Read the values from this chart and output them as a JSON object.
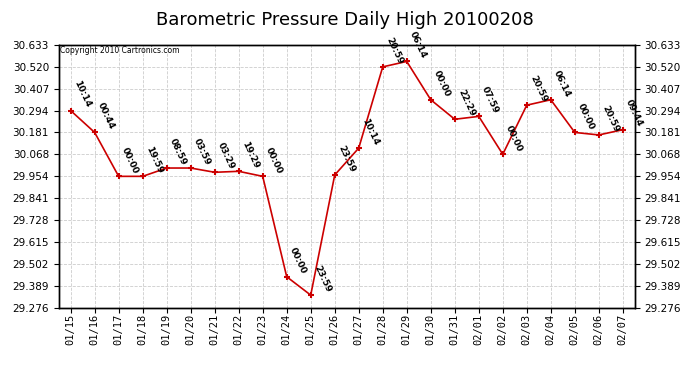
{
  "title": "Barometric Pressure Daily High 20100208",
  "copyright": "Copyright 2010 Cartronics.com",
  "background_color": "#ffffff",
  "plot_bg_color": "#ffffff",
  "line_color": "#cc0000",
  "marker_color": "#cc0000",
  "grid_color": "#cccccc",
  "border_color": "#000000",
  "data_points": [
    {
      "date": "01/15",
      "x": 0,
      "value": 30.294,
      "label": "10:14"
    },
    {
      "date": "01/16",
      "x": 1,
      "value": 30.181,
      "label": "00:44"
    },
    {
      "date": "01/17",
      "x": 2,
      "value": 29.954,
      "label": "00:00"
    },
    {
      "date": "01/18",
      "x": 3,
      "value": 29.954,
      "label": "19:59"
    },
    {
      "date": "01/19",
      "x": 4,
      "value": 29.997,
      "label": "08:59"
    },
    {
      "date": "01/20",
      "x": 5,
      "value": 29.997,
      "label": "03:59"
    },
    {
      "date": "01/21",
      "x": 6,
      "value": 29.975,
      "label": "03:29"
    },
    {
      "date": "01/22",
      "x": 7,
      "value": 29.98,
      "label": "19:29"
    },
    {
      "date": "01/23",
      "x": 8,
      "value": 29.954,
      "label": "00:00"
    },
    {
      "date": "01/24",
      "x": 9,
      "value": 29.435,
      "label": "00:00"
    },
    {
      "date": "01/25",
      "x": 10,
      "value": 29.34,
      "label": "23:59"
    },
    {
      "date": "01/26",
      "x": 11,
      "value": 29.961,
      "label": "23:59"
    },
    {
      "date": "01/27",
      "x": 12,
      "value": 30.1,
      "label": "10:14"
    },
    {
      "date": "01/28",
      "x": 13,
      "value": 30.52,
      "label": "20:59"
    },
    {
      "date": "01/29",
      "x": 14,
      "value": 30.548,
      "label": "06:14"
    },
    {
      "date": "01/30",
      "x": 15,
      "value": 30.35,
      "label": "00:00"
    },
    {
      "date": "01/31",
      "x": 16,
      "value": 30.249,
      "label": "22:29"
    },
    {
      "date": "02/01",
      "x": 17,
      "value": 30.264,
      "label": "07:59"
    },
    {
      "date": "02/02",
      "x": 18,
      "value": 30.068,
      "label": "00:00"
    },
    {
      "date": "02/03",
      "x": 19,
      "value": 30.322,
      "label": "20:59"
    },
    {
      "date": "02/04",
      "x": 20,
      "value": 30.35,
      "label": "06:14"
    },
    {
      "date": "02/05",
      "x": 21,
      "value": 30.181,
      "label": "00:00"
    },
    {
      "date": "02/06",
      "x": 22,
      "value": 30.168,
      "label": "20:59"
    },
    {
      "date": "02/07",
      "x": 23,
      "value": 30.195,
      "label": "09:44"
    }
  ],
  "yticks": [
    29.276,
    29.389,
    29.502,
    29.615,
    29.728,
    29.841,
    29.954,
    30.068,
    30.181,
    30.294,
    30.407,
    30.52,
    30.633
  ],
  "ylim": [
    29.276,
    30.633
  ],
  "title_fontsize": 13,
  "tick_fontsize": 7.5,
  "annotation_fontsize": 6.5
}
